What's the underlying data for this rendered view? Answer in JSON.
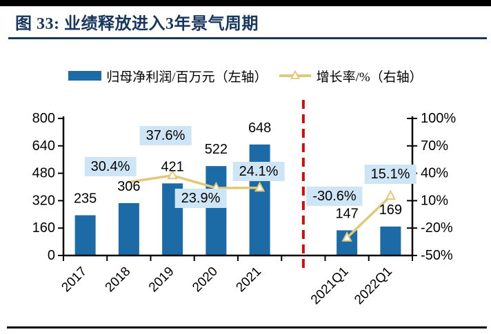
{
  "header": {
    "title": "图 33: 业绩释放进入3年景气周期"
  },
  "legend": {
    "bar_label": "归母净利润/百万元（左轴）",
    "line_label": "增长率/%（右轴）"
  },
  "colors": {
    "bar": "#1D6BA6",
    "line": "#E3C778",
    "marker_fill": "#FFFEF8",
    "label_box_bg": "#CEE5F6",
    "divider_red": "#CC1010",
    "title_navy": "#17365D",
    "axis": "#000000"
  },
  "chart_data": {
    "type": "combo-bar-line",
    "title": "业绩释放进入3年景气周期",
    "categories": [
      "2017",
      "2018",
      "2019",
      "2020",
      "2021",
      "2021Q1",
      "2022Q1"
    ],
    "gap_after_category_index": 4,
    "series": [
      {
        "name": "归母净利润/百万元（左轴）",
        "type": "bar",
        "axis": "left",
        "values": [
          235,
          306,
          421,
          522,
          648,
          147,
          169
        ]
      },
      {
        "name": "增长率/%（右轴）",
        "type": "line",
        "axis": "right",
        "values": [
          null,
          30.4,
          37.6,
          23.9,
          24.1,
          -30.6,
          15.1
        ]
      }
    ],
    "bar_value_labels": [
      "235",
      "306",
      "421",
      "522",
      "648",
      "147",
      "169"
    ],
    "growth_labels": [
      null,
      "30.4%",
      "37.6%",
      "23.9%",
      "24.1%",
      "-30.6%",
      "15.1%"
    ],
    "left_axis": {
      "label": "归母净利润/百万元",
      "tick_values": [
        0,
        160,
        320,
        480,
        640,
        800
      ],
      "tick_labels": [
        "0",
        "160",
        "320",
        "480",
        "640",
        "800"
      ],
      "range": [
        0,
        800
      ]
    },
    "right_axis": {
      "label": "增长率/%",
      "tick_values": [
        -50,
        -20,
        10,
        40,
        70,
        100
      ],
      "tick_labels": [
        "-50%",
        "-20%",
        "10%",
        "40%",
        "70%",
        "100%"
      ],
      "range": [
        -50,
        100
      ]
    },
    "divider": {
      "type": "vertical-dashed-line",
      "color": "#CC1010",
      "between": [
        "2021",
        "2021Q1"
      ]
    },
    "legend_position": "top",
    "grid": false
  }
}
